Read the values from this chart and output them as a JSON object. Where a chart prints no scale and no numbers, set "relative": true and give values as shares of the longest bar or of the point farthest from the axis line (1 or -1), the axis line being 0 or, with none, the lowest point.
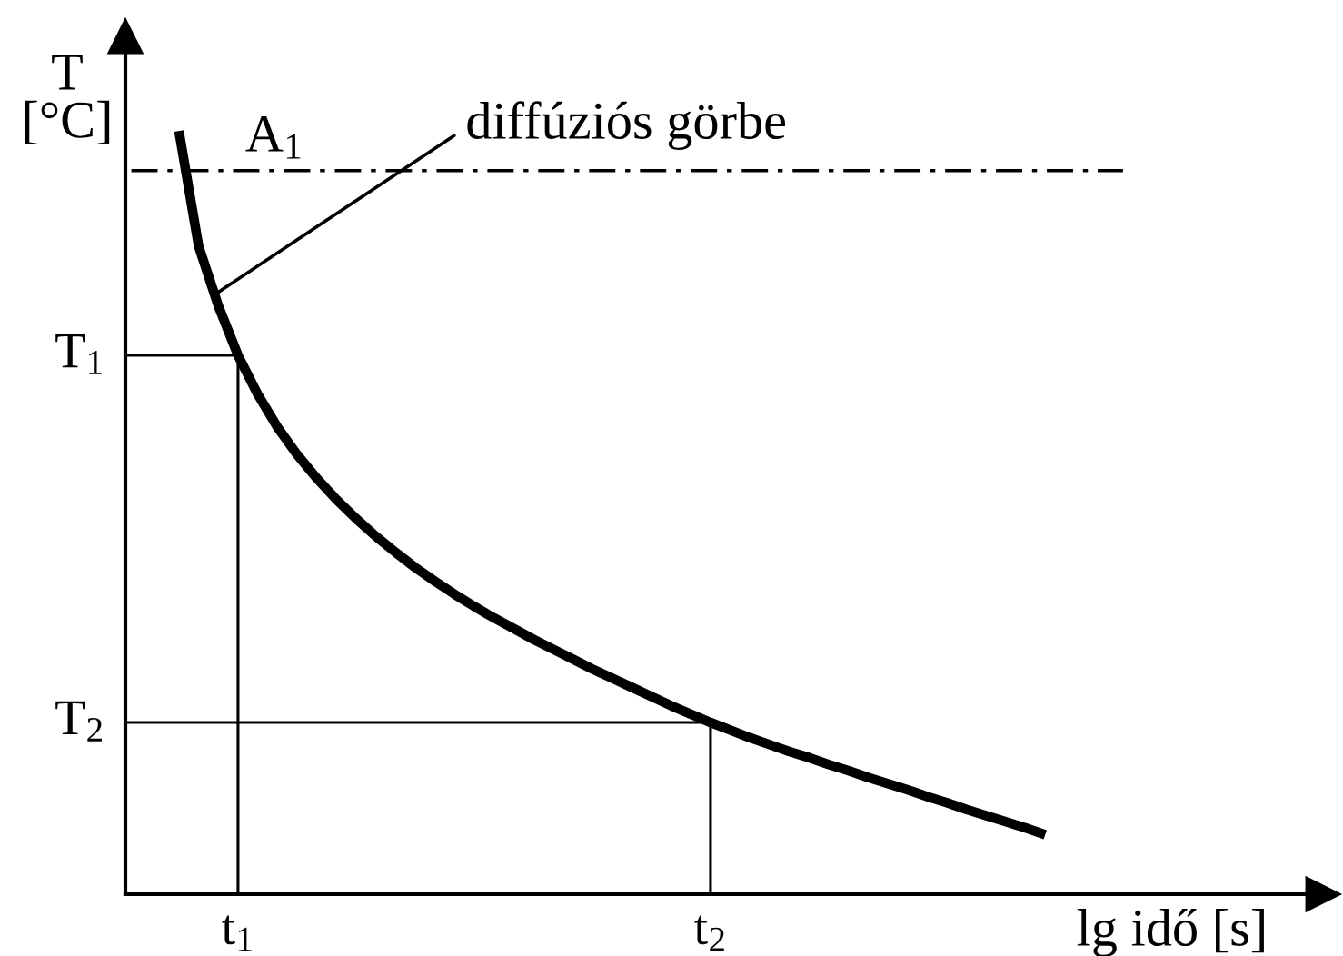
{
  "chart_data": {
    "type": "line",
    "relative": true,
    "ylabel": "T\n[°C]",
    "xlabel": "lg idő [s]",
    "categories": [
      null,
      null,
      null,
      "t$_{1}$",
      null,
      null,
      null,
      null,
      null,
      null,
      null,
      null,
      null,
      null,
      null,
      null,
      null,
      null,
      null,
      null,
      null,
      null,
      null,
      null,
      null,
      null,
      null,
      "t$_{2}$",
      null,
      null,
      null,
      null,
      null,
      null,
      null,
      null,
      null,
      null,
      null,
      null,
      null,
      null,
      null,
      null,
      null
    ],
    "series": [
      {
        "color": "#000000",
        "values": [
          1.0,
          0.849,
          0.771,
          0.706,
          0.655,
          0.612,
          0.576,
          0.545,
          0.517,
          0.492,
          0.469,
          0.448,
          0.428,
          0.41,
          0.393,
          0.377,
          0.362,
          0.348,
          0.334,
          0.321,
          0.308,
          0.295,
          0.283,
          0.271,
          0.259,
          0.247,
          0.236,
          0.225,
          0.215,
          0.205,
          0.196,
          0.187,
          0.179,
          0.17,
          0.162,
          0.153,
          0.145,
          0.137,
          0.128,
          0.12,
          0.111,
          0.103,
          0.095,
          0.087,
          0.078
        ]
      }
    ],
    "ref_lines": [
      {
        "axis": "y",
        "value": 0.948,
        "label": "A$_{1}$",
        "color": "#000000",
        "line_style": "dashdot"
      },
      {
        "axis": "y",
        "value": 0.706,
        "label": "T$_{1}$",
        "color": "#000000",
        "line_style": "solid"
      },
      {
        "axis": "y",
        "value": 0.225,
        "label": "T$_{2}$",
        "color": "#000000",
        "line_style": "solid"
      }
    ],
    "annotations": [
      "diffúziós görbe"
    ],
    "marker": "none",
    "line_style": "solid"
  }
}
